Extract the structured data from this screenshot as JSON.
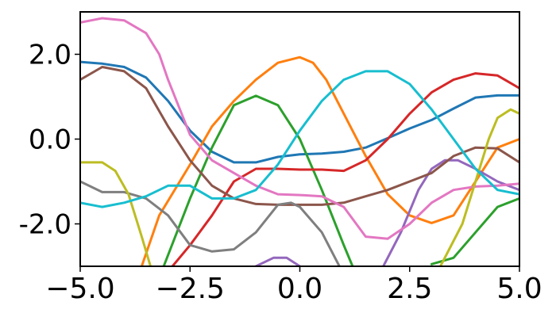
{
  "chart_data": {
    "type": "line",
    "title": "",
    "xlabel": "",
    "ylabel": "",
    "xlim": [
      -5.0,
      5.0
    ],
    "ylim": [
      -3.0,
      3.0
    ],
    "grid": false,
    "x_ticks": [
      {
        "value": -5.0,
        "label": "−5.0"
      },
      {
        "value": -2.5,
        "label": "−2.5"
      },
      {
        "value": 0.0,
        "label": "0.0"
      },
      {
        "value": 2.5,
        "label": "2.5"
      },
      {
        "value": 5.0,
        "label": "5.0"
      }
    ],
    "y_ticks": [
      {
        "value": -2.0,
        "label": "-2.0"
      },
      {
        "value": 0.0,
        "label": "0.0"
      },
      {
        "value": 2.0,
        "label": "2.0"
      }
    ],
    "series": [
      {
        "color": "#1f77b4",
        "points": [
          [
            -5.0,
            1.82
          ],
          [
            -4.5,
            1.78
          ],
          [
            -4.0,
            1.7
          ],
          [
            -3.5,
            1.45
          ],
          [
            -3.0,
            0.9
          ],
          [
            -2.5,
            0.2
          ],
          [
            -2.0,
            -0.3
          ],
          [
            -1.5,
            -0.55
          ],
          [
            -1.0,
            -0.55
          ],
          [
            -0.5,
            -0.42
          ],
          [
            0.0,
            -0.36
          ],
          [
            0.5,
            -0.34
          ],
          [
            1.0,
            -0.3
          ],
          [
            1.5,
            -0.2
          ],
          [
            2.0,
            0.02
          ],
          [
            2.5,
            0.25
          ],
          [
            3.0,
            0.45
          ],
          [
            3.5,
            0.72
          ],
          [
            4.0,
            0.98
          ],
          [
            4.5,
            1.03
          ],
          [
            5.0,
            1.03
          ]
        ]
      },
      {
        "color": "#ff7f0e",
        "points": [
          [
            -3.6,
            -3.0
          ],
          [
            -3.2,
            -1.8
          ],
          [
            -2.5,
            -0.6
          ],
          [
            -2.0,
            0.3
          ],
          [
            -1.5,
            0.9
          ],
          [
            -1.0,
            1.4
          ],
          [
            -0.5,
            1.8
          ],
          [
            0.0,
            1.93
          ],
          [
            0.3,
            1.8
          ],
          [
            0.6,
            1.4
          ],
          [
            1.0,
            0.6
          ],
          [
            1.5,
            -0.4
          ],
          [
            2.0,
            -1.3
          ],
          [
            2.5,
            -1.8
          ],
          [
            3.0,
            -1.98
          ],
          [
            3.5,
            -1.8
          ],
          [
            4.0,
            -1.0
          ],
          [
            4.5,
            -0.2
          ],
          [
            5.0,
            0.0
          ]
        ]
      },
      {
        "color": "#2ca02c",
        "points": [
          [
            -3.1,
            -3.0
          ],
          [
            -2.5,
            -1.4
          ],
          [
            -2.0,
            -0.2
          ],
          [
            -1.5,
            0.8
          ],
          [
            -1.0,
            1.02
          ],
          [
            -0.5,
            0.8
          ],
          [
            0.0,
            0.0
          ],
          [
            0.5,
            -1.2
          ],
          [
            1.0,
            -2.5
          ],
          [
            1.2,
            -3.0
          ]
        ]
      },
      {
        "color": "#2ca02c",
        "points": [
          [
            3.0,
            -2.95
          ],
          [
            3.5,
            -2.8
          ],
          [
            4.0,
            -2.2
          ],
          [
            4.5,
            -1.6
          ],
          [
            5.0,
            -1.4
          ]
        ]
      },
      {
        "color": "#d62728",
        "points": [
          [
            -2.9,
            -3.0
          ],
          [
            -2.5,
            -2.5
          ],
          [
            -2.0,
            -1.8
          ],
          [
            -1.5,
            -1.0
          ],
          [
            -1.0,
            -0.7
          ],
          [
            -0.5,
            -0.7
          ],
          [
            0.0,
            -0.72
          ],
          [
            0.5,
            -0.72
          ],
          [
            1.0,
            -0.75
          ],
          [
            1.5,
            -0.5
          ],
          [
            2.0,
            0.0
          ],
          [
            2.5,
            0.6
          ],
          [
            3.0,
            1.1
          ],
          [
            3.5,
            1.4
          ],
          [
            4.0,
            1.55
          ],
          [
            4.5,
            1.5
          ],
          [
            5.0,
            1.2
          ]
        ]
      },
      {
        "color": "#9467bd",
        "points": [
          [
            -1.0,
            -3.0
          ],
          [
            -0.6,
            -2.8
          ],
          [
            -0.3,
            -2.8
          ],
          [
            0.0,
            -3.0
          ]
        ]
      },
      {
        "color": "#9467bd",
        "points": [
          [
            1.9,
            -3.0
          ],
          [
            2.3,
            -2.2
          ],
          [
            2.7,
            -1.2
          ],
          [
            3.0,
            -0.7
          ],
          [
            3.3,
            -0.5
          ],
          [
            3.6,
            -0.5
          ],
          [
            4.0,
            -0.7
          ],
          [
            4.5,
            -1.0
          ],
          [
            5.0,
            -1.2
          ]
        ]
      },
      {
        "color": "#8c564b",
        "points": [
          [
            -5.0,
            1.4
          ],
          [
            -4.5,
            1.7
          ],
          [
            -4.0,
            1.6
          ],
          [
            -3.5,
            1.2
          ],
          [
            -3.0,
            0.3
          ],
          [
            -2.5,
            -0.5
          ],
          [
            -2.0,
            -1.1
          ],
          [
            -1.5,
            -1.4
          ],
          [
            -1.0,
            -1.53
          ],
          [
            -0.5,
            -1.55
          ],
          [
            0.0,
            -1.55
          ],
          [
            0.5,
            -1.55
          ],
          [
            1.0,
            -1.5
          ],
          [
            1.5,
            -1.35
          ],
          [
            2.0,
            -1.2
          ],
          [
            2.5,
            -1.0
          ],
          [
            3.0,
            -0.8
          ],
          [
            3.5,
            -0.4
          ],
          [
            4.0,
            -0.2
          ],
          [
            4.5,
            -0.22
          ],
          [
            5.0,
            -0.55
          ]
        ]
      },
      {
        "color": "#e377c2",
        "points": [
          [
            -5.0,
            2.75
          ],
          [
            -4.5,
            2.85
          ],
          [
            -4.0,
            2.8
          ],
          [
            -3.5,
            2.5
          ],
          [
            -3.2,
            2.0
          ],
          [
            -3.0,
            1.4
          ],
          [
            -2.5,
            0.1
          ],
          [
            -2.0,
            -0.5
          ],
          [
            -1.5,
            -0.8
          ],
          [
            -1.0,
            -1.1
          ],
          [
            -0.5,
            -1.3
          ],
          [
            0.0,
            -1.32
          ],
          [
            0.5,
            -1.35
          ],
          [
            1.0,
            -1.6
          ],
          [
            1.5,
            -2.3
          ],
          [
            2.0,
            -2.35
          ],
          [
            2.5,
            -2.0
          ],
          [
            3.0,
            -1.5
          ],
          [
            3.5,
            -1.2
          ],
          [
            4.0,
            -1.12
          ],
          [
            4.5,
            -1.1
          ],
          [
            5.0,
            -1.05
          ]
        ]
      },
      {
        "color": "#7f7f7f",
        "points": [
          [
            -5.0,
            -1.0
          ],
          [
            -4.5,
            -1.25
          ],
          [
            -4.0,
            -1.25
          ],
          [
            -3.5,
            -1.4
          ],
          [
            -3.0,
            -1.8
          ],
          [
            -2.5,
            -2.5
          ],
          [
            -2.0,
            -2.65
          ],
          [
            -1.5,
            -2.6
          ],
          [
            -1.0,
            -2.2
          ],
          [
            -0.5,
            -1.55
          ],
          [
            -0.2,
            -1.5
          ],
          [
            0.0,
            -1.6
          ],
          [
            0.5,
            -2.2
          ],
          [
            0.9,
            -3.0
          ]
        ]
      },
      {
        "color": "#bcbd22",
        "points": [
          [
            -5.0,
            -0.55
          ],
          [
            -4.5,
            -0.55
          ],
          [
            -4.2,
            -0.75
          ],
          [
            -3.9,
            -1.3
          ],
          [
            -3.6,
            -2.3
          ],
          [
            -3.4,
            -3.0
          ]
        ]
      },
      {
        "color": "#bcbd22",
        "points": [
          [
            3.2,
            -3.0
          ],
          [
            3.7,
            -2.0
          ],
          [
            4.0,
            -1.0
          ],
          [
            4.3,
            0.0
          ],
          [
            4.5,
            0.5
          ],
          [
            4.8,
            0.7
          ],
          [
            5.0,
            0.6
          ]
        ]
      },
      {
        "color": "#17becf",
        "points": [
          [
            -5.0,
            -1.5
          ],
          [
            -4.5,
            -1.6
          ],
          [
            -4.0,
            -1.5
          ],
          [
            -3.5,
            -1.35
          ],
          [
            -3.0,
            -1.1
          ],
          [
            -2.5,
            -1.1
          ],
          [
            -2.0,
            -1.4
          ],
          [
            -1.5,
            -1.4
          ],
          [
            -1.0,
            -1.2
          ],
          [
            -0.5,
            -0.6
          ],
          [
            0.0,
            0.2
          ],
          [
            0.5,
            0.9
          ],
          [
            1.0,
            1.4
          ],
          [
            1.5,
            1.6
          ],
          [
            2.0,
            1.6
          ],
          [
            2.5,
            1.3
          ],
          [
            3.0,
            0.7
          ],
          [
            3.5,
            0.0
          ],
          [
            4.0,
            -0.7
          ],
          [
            4.5,
            -1.2
          ],
          [
            5.0,
            -1.3
          ]
        ]
      }
    ]
  }
}
